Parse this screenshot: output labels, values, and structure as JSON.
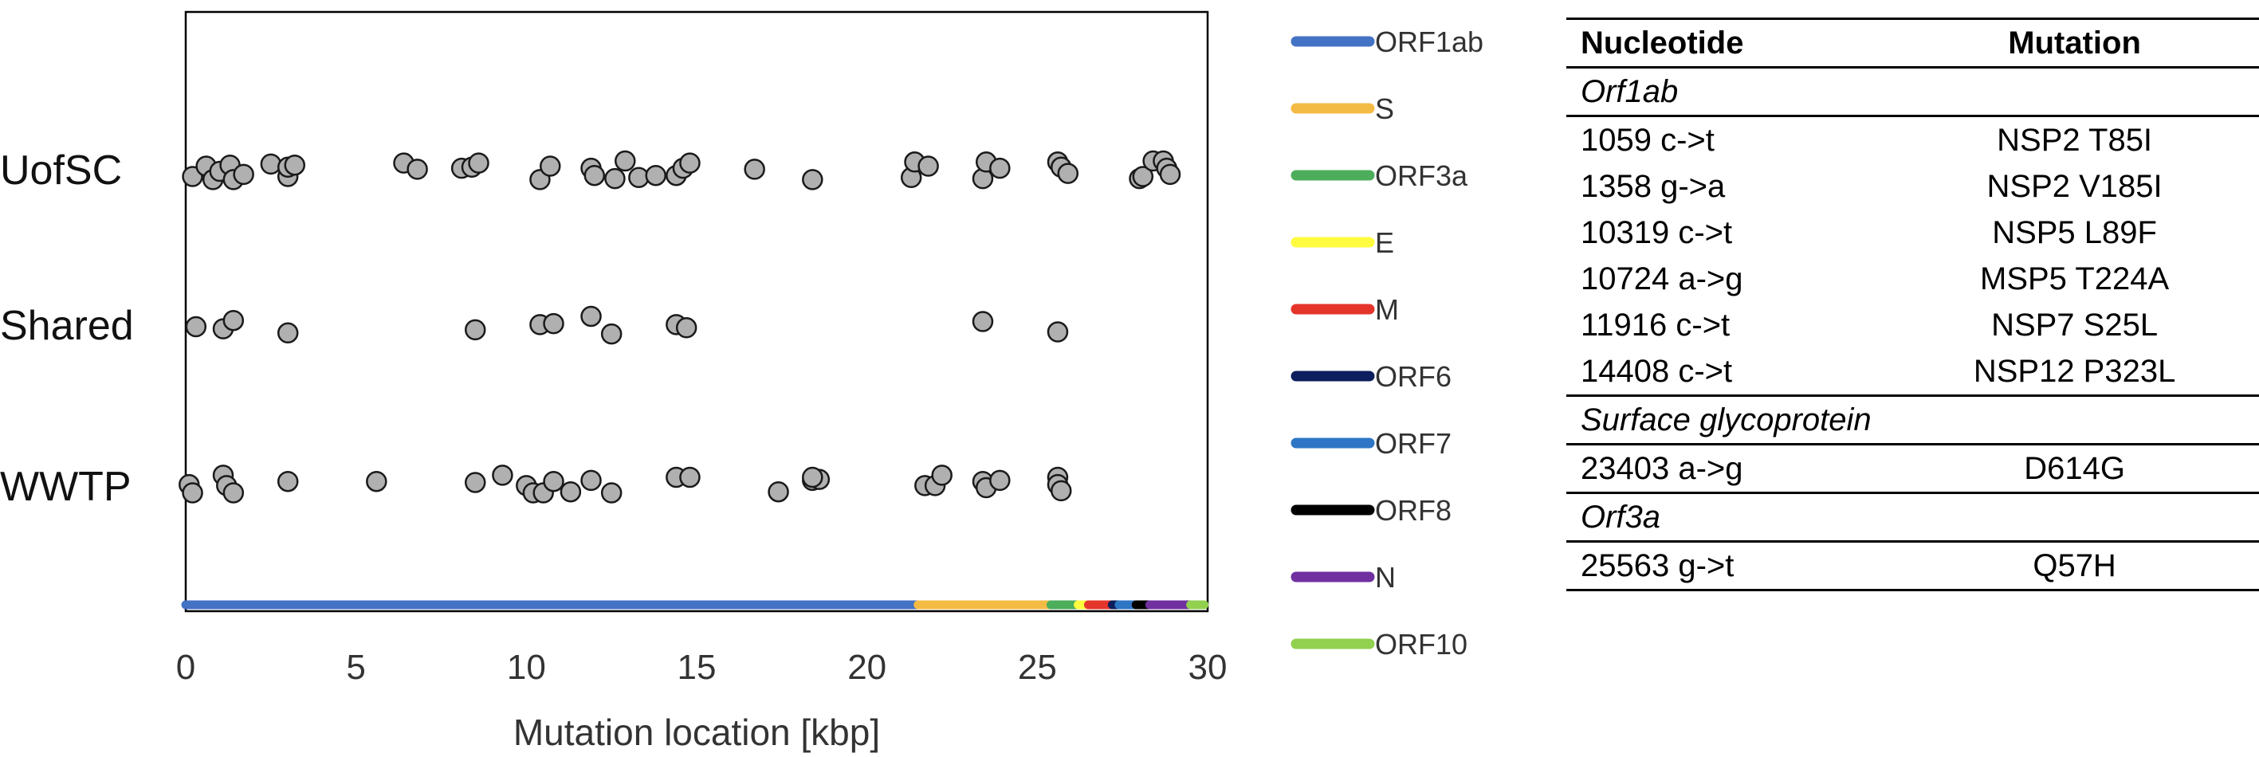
{
  "chart_data": {
    "type": "scatter",
    "xlabel": "Mutation location [kbp]",
    "xlim": [
      0,
      30
    ],
    "x_ticks": [
      0,
      5,
      10,
      15,
      20,
      25,
      30
    ],
    "categories": [
      "UofSC",
      "Shared",
      "WWTP"
    ],
    "grid": false,
    "legend_position": "right",
    "series": [
      {
        "name": "UofSC",
        "points": [
          [
            0.2,
            -0.05
          ],
          [
            0.6,
            0.05
          ],
          [
            0.8,
            -0.08
          ],
          [
            1.0,
            0.0
          ],
          [
            1.3,
            0.06
          ],
          [
            1.4,
            -0.08
          ],
          [
            1.7,
            -0.03
          ],
          [
            2.5,
            0.07
          ],
          [
            3.0,
            -0.05
          ],
          [
            3.0,
            0.04
          ],
          [
            3.2,
            0.06
          ],
          [
            6.4,
            0.08
          ],
          [
            6.8,
            0.02
          ],
          [
            8.1,
            0.03
          ],
          [
            8.4,
            0.04
          ],
          [
            8.6,
            0.08
          ],
          [
            10.4,
            -0.08
          ],
          [
            10.7,
            0.05
          ],
          [
            11.9,
            0.03
          ],
          [
            12.0,
            -0.04
          ],
          [
            12.6,
            -0.07
          ],
          [
            12.9,
            0.1
          ],
          [
            13.3,
            -0.06
          ],
          [
            13.8,
            -0.04
          ],
          [
            14.4,
            -0.04
          ],
          [
            14.6,
            0.03
          ],
          [
            14.8,
            0.08
          ],
          [
            16.7,
            0.02
          ],
          [
            18.4,
            -0.08
          ],
          [
            21.3,
            -0.06
          ],
          [
            21.4,
            0.09
          ],
          [
            21.8,
            0.05
          ],
          [
            23.4,
            -0.07
          ],
          [
            23.5,
            0.09
          ],
          [
            23.9,
            0.03
          ],
          [
            25.6,
            0.09
          ],
          [
            25.7,
            0.04
          ],
          [
            25.9,
            -0.02
          ],
          [
            28.0,
            -0.07
          ],
          [
            28.1,
            -0.05
          ],
          [
            28.4,
            0.1
          ],
          [
            28.7,
            0.1
          ],
          [
            28.8,
            0.03
          ],
          [
            28.9,
            -0.03
          ]
        ]
      },
      {
        "name": "Shared",
        "points": [
          [
            0.3,
            0.0
          ],
          [
            1.1,
            -0.02
          ],
          [
            1.4,
            0.06
          ],
          [
            3.0,
            -0.06
          ],
          [
            8.5,
            -0.03
          ],
          [
            10.4,
            0.02
          ],
          [
            10.8,
            0.03
          ],
          [
            11.9,
            0.1
          ],
          [
            12.5,
            -0.07
          ],
          [
            14.4,
            0.02
          ],
          [
            14.7,
            -0.01
          ],
          [
            23.4,
            0.05
          ],
          [
            25.6,
            -0.05
          ]
        ]
      },
      {
        "name": "WWTP",
        "points": [
          [
            0.1,
            0.03
          ],
          [
            0.2,
            -0.05
          ],
          [
            1.1,
            0.12
          ],
          [
            1.2,
            0.02
          ],
          [
            1.4,
            -0.05
          ],
          [
            3.0,
            0.06
          ],
          [
            5.6,
            0.06
          ],
          [
            8.5,
            0.05
          ],
          [
            9.3,
            0.12
          ],
          [
            10.0,
            0.02
          ],
          [
            10.2,
            -0.05
          ],
          [
            10.5,
            -0.05
          ],
          [
            10.8,
            0.06
          ],
          [
            11.3,
            -0.04
          ],
          [
            11.9,
            0.07
          ],
          [
            12.5,
            -0.05
          ],
          [
            14.4,
            0.1
          ],
          [
            14.8,
            0.1
          ],
          [
            17.4,
            -0.04
          ],
          [
            18.4,
            0.07
          ],
          [
            18.6,
            0.08
          ],
          [
            18.4,
            0.1
          ],
          [
            21.7,
            0.02
          ],
          [
            22.0,
            0.02
          ],
          [
            22.2,
            0.12
          ],
          [
            23.4,
            0.06
          ],
          [
            23.5,
            0.0
          ],
          [
            23.9,
            0.07
          ],
          [
            25.6,
            0.1
          ],
          [
            25.6,
            0.03
          ],
          [
            25.7,
            -0.03
          ]
        ]
      }
    ],
    "genome_bar": [
      {
        "gene": "ORF1ab",
        "start": 0.0,
        "end": 21.5
      },
      {
        "gene": "S",
        "start": 21.5,
        "end": 25.4
      },
      {
        "gene": "ORF3a",
        "start": 25.4,
        "end": 26.2
      },
      {
        "gene": "E",
        "start": 26.2,
        "end": 26.5
      },
      {
        "gene": "M",
        "start": 26.5,
        "end": 27.2
      },
      {
        "gene": "ORF6",
        "start": 27.2,
        "end": 27.4
      },
      {
        "gene": "ORF7",
        "start": 27.4,
        "end": 27.9
      },
      {
        "gene": "ORF8",
        "start": 27.9,
        "end": 28.3
      },
      {
        "gene": "N",
        "start": 28.3,
        "end": 29.5
      },
      {
        "gene": "ORF10",
        "start": 29.5,
        "end": 29.9
      }
    ],
    "legend": [
      {
        "label": "ORF1ab",
        "color": "#4472c4"
      },
      {
        "label": "S",
        "color": "#f4bb44"
      },
      {
        "label": "ORF3a",
        "color": "#4cad5b"
      },
      {
        "label": "E",
        "color": "#fffb3e"
      },
      {
        "label": "M",
        "color": "#e5352b"
      },
      {
        "label": "ORF6",
        "color": "#0d1e5e"
      },
      {
        "label": "ORF7",
        "color": "#2e76c5"
      },
      {
        "label": "ORF8",
        "color": "#000000"
      },
      {
        "label": "N",
        "color": "#7030a0"
      },
      {
        "label": "ORF10",
        "color": "#92d050"
      }
    ],
    "marker_fill": "#b0b0b0",
    "marker_stroke": "#1a1a1a"
  },
  "table": {
    "headers": [
      "Nucleotide",
      "Mutation"
    ],
    "groups": [
      {
        "name": "Orf1ab",
        "rows": [
          [
            "1059 c->t",
            "NSP2 T85I"
          ],
          [
            "1358 g->a",
            "NSP2 V185I"
          ],
          [
            "10319 c->t",
            "NSP5 L89F"
          ],
          [
            "10724 a->g",
            "MSP5 T224A"
          ],
          [
            "11916 c->t",
            "NSP7 S25L"
          ],
          [
            "14408 c->t",
            "NSP12 P323L"
          ]
        ]
      },
      {
        "name": "Surface glycoprotein",
        "rows": [
          [
            "23403 a->g",
            "D614G"
          ]
        ]
      },
      {
        "name": "Orf3a",
        "rows": [
          [
            "25563 g->t",
            "Q57H"
          ]
        ]
      }
    ]
  }
}
